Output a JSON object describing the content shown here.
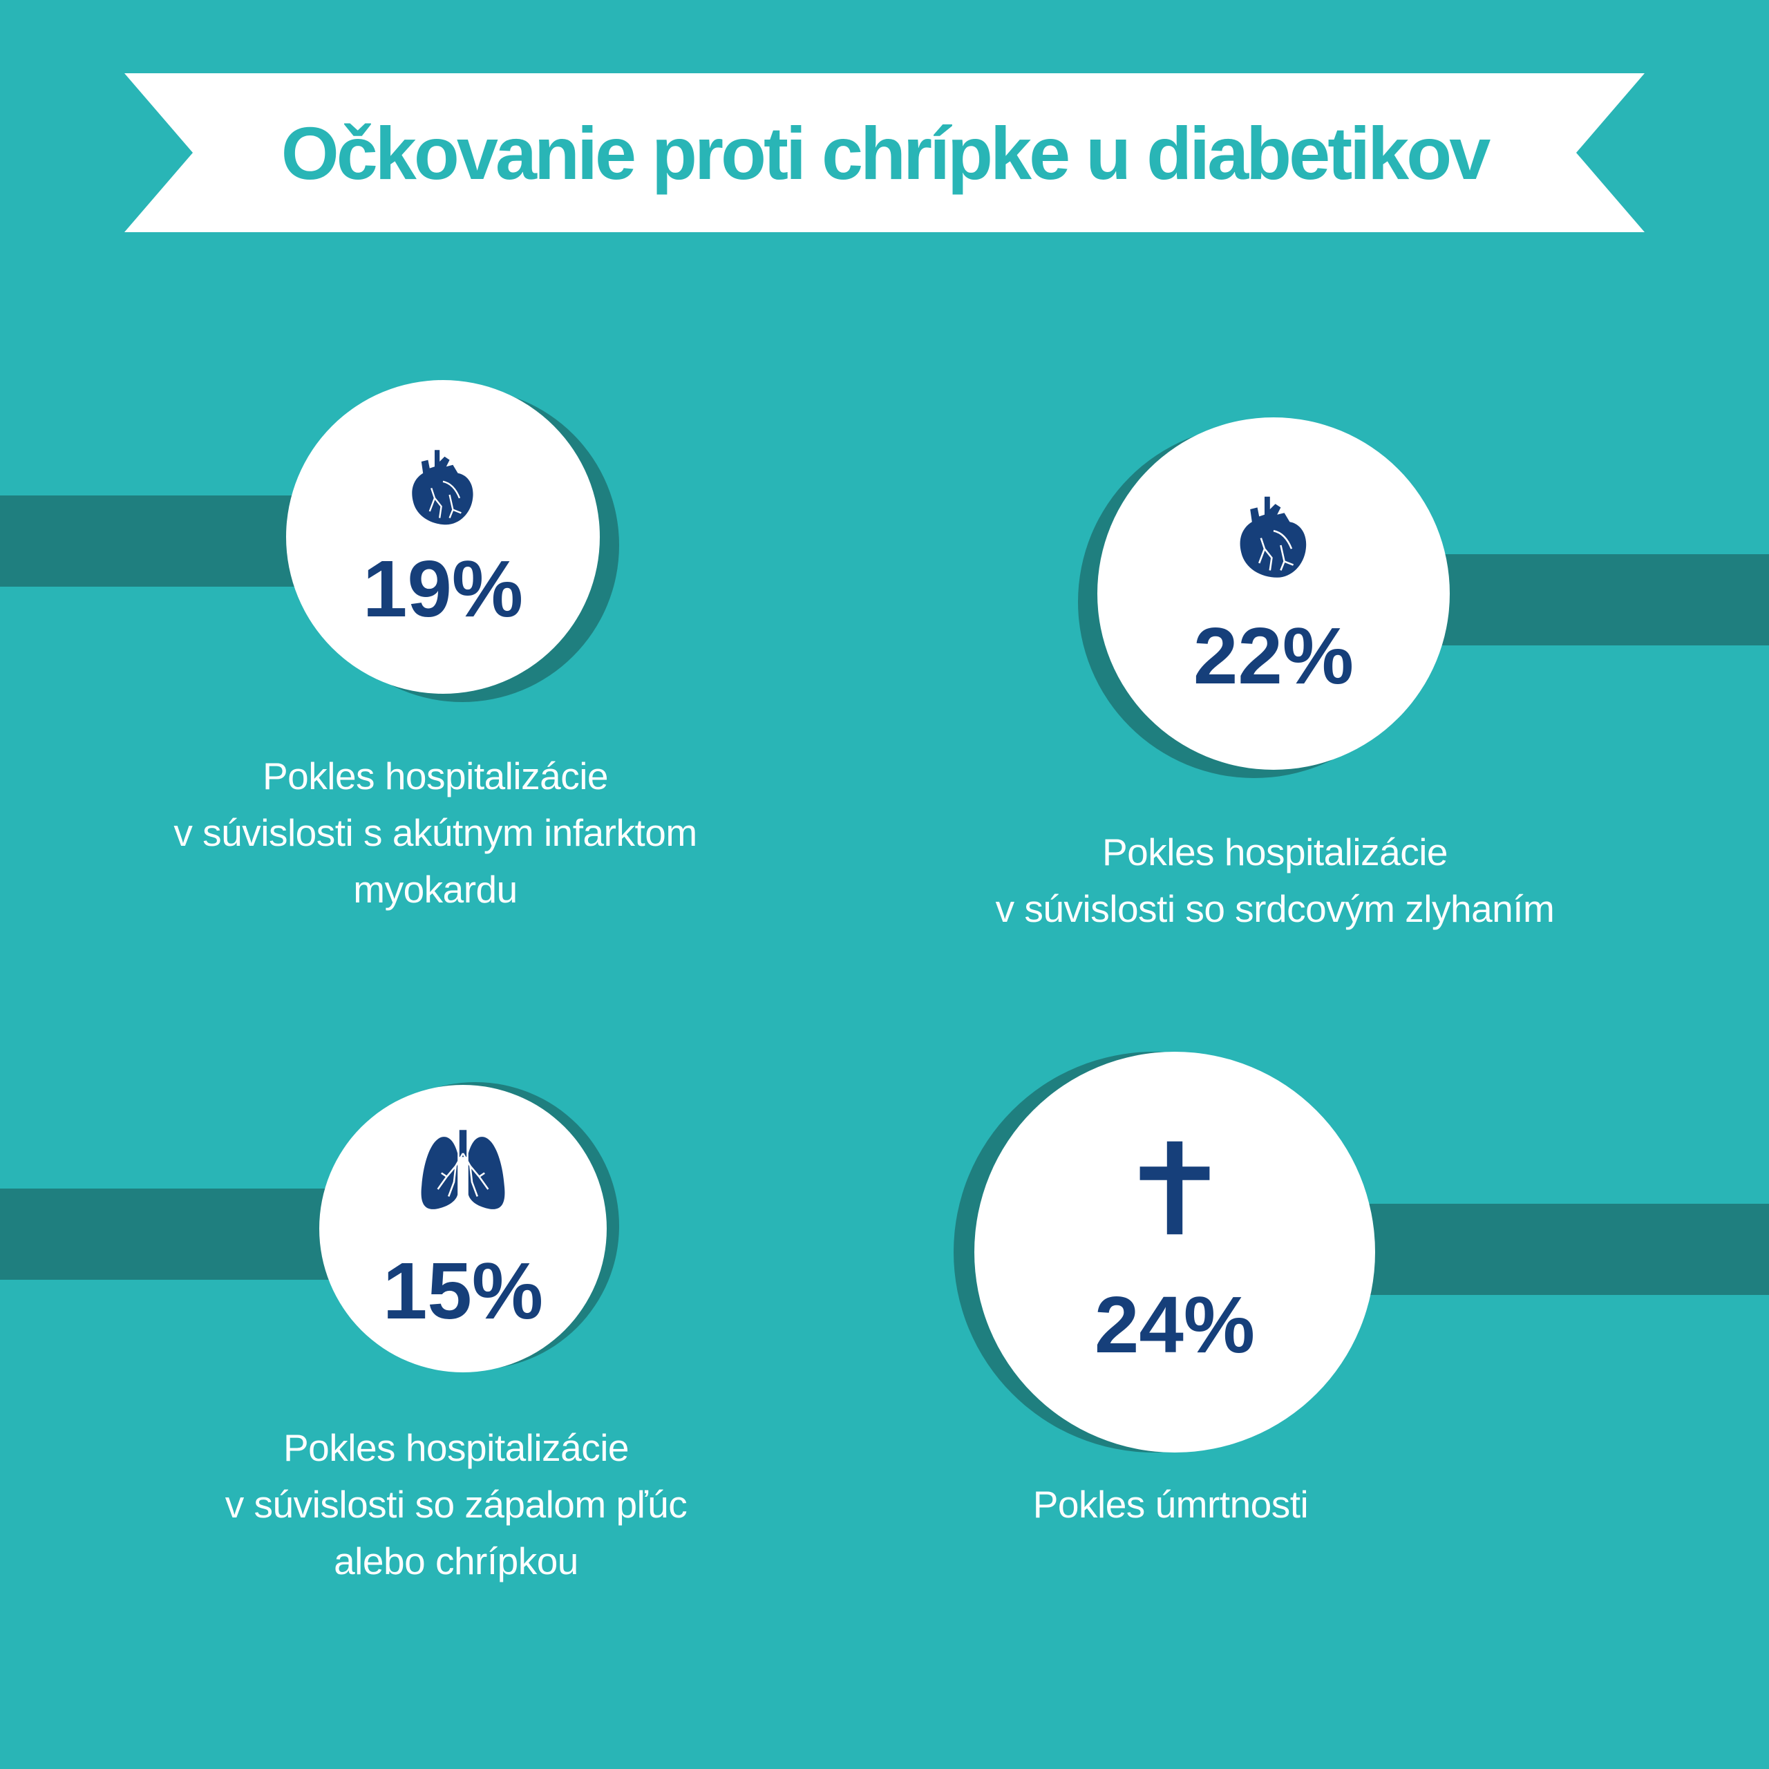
{
  "title": "Očkovanie proti  chrípke u diabetikov",
  "colors": {
    "background": "#29b5b6",
    "stripe": "#1f7f7f",
    "circle": "#ffffff",
    "number": "#163f7a",
    "caption": "#ffffff"
  },
  "stats": [
    {
      "icon": "heart-icon",
      "value": "19%",
      "caption": "Pokles hospitalizácie\nv  súvislosti s akútnym infarktom\nmyokardu"
    },
    {
      "icon": "heart-icon",
      "value": "22%",
      "caption": "Pokles hospitalizácie\nv súvislosti  so srdcovým zlyhaním"
    },
    {
      "icon": "lungs-icon",
      "value": "15%",
      "caption": "Pokles hospitalizácie\nv súvislosti  so zápalom pľúc\nalebo chrípkou"
    },
    {
      "icon": "cross-icon",
      "value": "24%",
      "caption": "Pokles úmrtnosti"
    }
  ]
}
